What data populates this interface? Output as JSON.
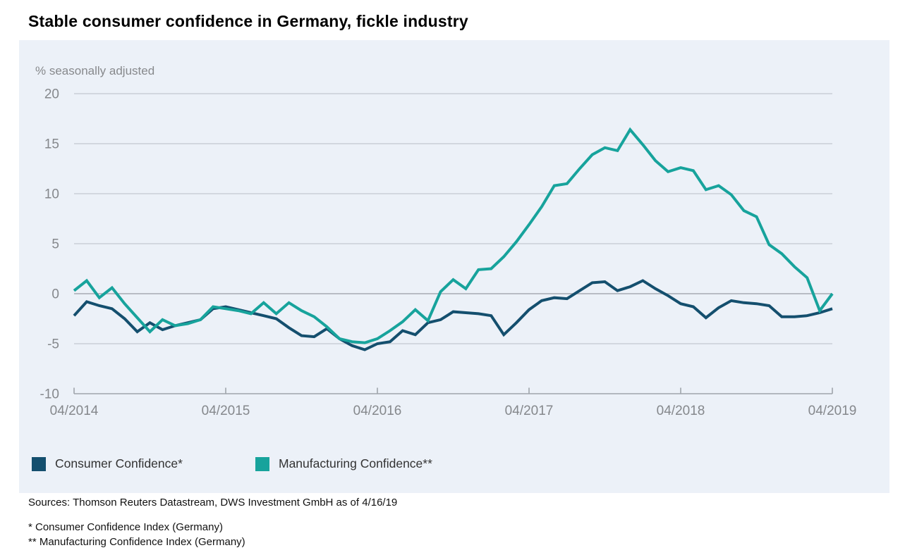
{
  "page": {
    "title": "Stable consumer confidence in Germany, fickle industry"
  },
  "chart_data": {
    "type": "line",
    "title": "Stable consumer confidence in Germany, fickle industry",
    "subtitle": "% seasonally adjusted",
    "ylim": [
      -10,
      20
    ],
    "yticks": [
      20,
      15,
      10,
      5,
      0,
      -5,
      -10
    ],
    "xticks": [
      "04/2014",
      "04/2015",
      "04/2016",
      "04/2017",
      "04/2018",
      "04/2019"
    ],
    "x_frequency": "monthly",
    "x_start": "04/2014",
    "x_end": "04/2019",
    "grid": true,
    "legend_position": "bottom",
    "theme": {
      "panel_background": "#ECF1F8",
      "gridline_color": "#C3C8D0",
      "zero_line_color": "#A6ABB2",
      "axis_line_color": "#9FA4AB",
      "tick_label_color": "#85888C"
    },
    "series": [
      {
        "key": "consumer-confidence",
        "name": "Consumer Confidence*",
        "color": "#144F6E",
        "values": [
          -2.2,
          -0.8,
          -1.2,
          -1.5,
          -2.5,
          -3.8,
          -2.9,
          -3.6,
          -3.2,
          -2.9,
          -2.6,
          -1.5,
          -1.3,
          -1.6,
          -1.9,
          -2.2,
          -2.5,
          -3.4,
          -4.2,
          -4.3,
          -3.5,
          -4.5,
          -5.2,
          -5.6,
          -5.0,
          -4.8,
          -3.7,
          -4.1,
          -2.9,
          -2.6,
          -1.8,
          -1.9,
          -2.0,
          -2.2,
          -4.1,
          -2.9,
          -1.6,
          -0.7,
          -0.4,
          -0.5,
          0.3,
          1.1,
          1.2,
          0.3,
          0.7,
          1.3,
          0.5,
          -0.2,
          -1.0,
          -1.3,
          -2.4,
          -1.4,
          -0.7,
          -0.9,
          -1.0,
          -1.2,
          -2.3,
          -2.3,
          -2.2,
          -1.9,
          -1.5
        ]
      },
      {
        "key": "manufacturing-confidence",
        "name": "Manufacturing Confidence**",
        "color": "#17A39C",
        "values": [
          0.3,
          1.3,
          -0.4,
          0.6,
          -1.0,
          -2.4,
          -3.8,
          -2.6,
          -3.2,
          -3.0,
          -2.6,
          -1.3,
          -1.5,
          -1.7,
          -2.0,
          -0.9,
          -2.0,
          -0.9,
          -1.7,
          -2.3,
          -3.3,
          -4.5,
          -4.8,
          -4.9,
          -4.5,
          -3.7,
          -2.8,
          -1.6,
          -2.7,
          0.2,
          1.4,
          0.5,
          2.4,
          2.5,
          3.7,
          5.2,
          6.9,
          8.7,
          10.8,
          11.0,
          12.5,
          13.9,
          14.6,
          14.3,
          16.4,
          14.9,
          13.3,
          12.2,
          12.6,
          12.3,
          10.4,
          10.8,
          9.9,
          8.3,
          7.7,
          4.9,
          4.0,
          2.7,
          1.6,
          -1.7,
          0.0
        ]
      }
    ]
  },
  "footer": {
    "sources": "Sources: Thomson Reuters Datastream, DWS Investment GmbH as of 4/16/19",
    "footnote1": "* Consumer Confidence Index (Germany)",
    "footnote2": "** Manufacturing Confidence Index (Germany)"
  }
}
